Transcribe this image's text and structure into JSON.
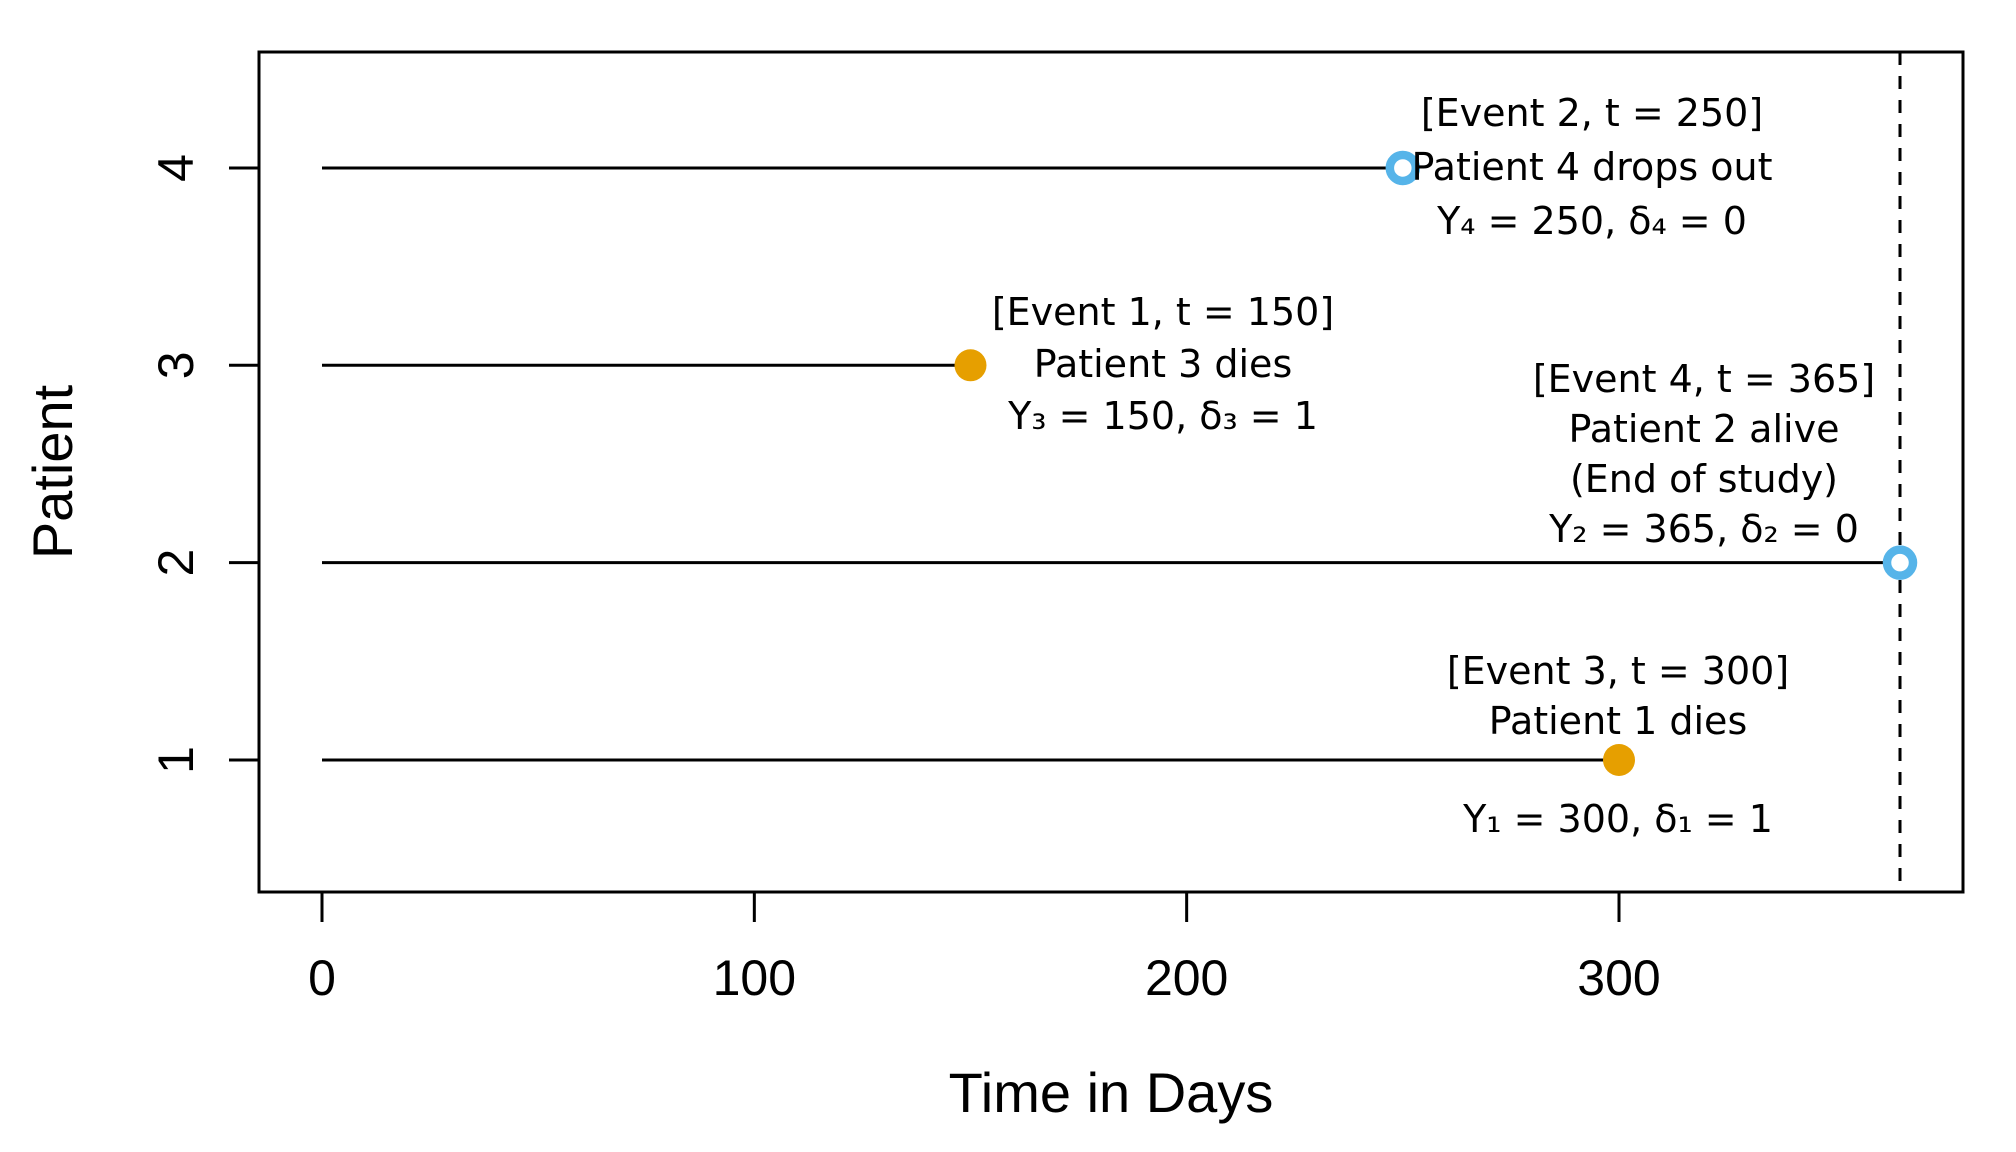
{
  "chart_data": {
    "type": "line",
    "title": "",
    "xlabel": "Time in Days",
    "ylabel": "Patient",
    "xlim": [
      -15,
      380
    ],
    "ylim": [
      0.3,
      4.6
    ],
    "x_ticks": [
      "0",
      "100",
      "200",
      "300"
    ],
    "x_tick_values": [
      0,
      100,
      200,
      300
    ],
    "y_ticks": [
      "1",
      "2",
      "3",
      "4"
    ],
    "y_tick_values": [
      1,
      2,
      3,
      4
    ],
    "grid": "off",
    "legend": "none",
    "end_of_study_time": 365,
    "colors": {
      "death_marker": "#E69F00",
      "censor_marker": "#56B4E9",
      "line": "#000000",
      "dashed_line": "#000000",
      "background": "#FFFFFF"
    },
    "series": [
      {
        "patient": 1,
        "start": 0,
        "time": 300,
        "delta": 1,
        "event_number": 3,
        "marker": "filled-circle",
        "annotation_lines": [
          "[Event 3, t = 300]",
          "Patient 1 dies",
          "Y₁ = 300, δ₁ = 1"
        ]
      },
      {
        "patient": 2,
        "start": 0,
        "time": 365,
        "delta": 0,
        "event_number": 4,
        "marker": "open-circle",
        "annotation_lines": [
          "[Event 4, t = 365]",
          "Patient 2 alive",
          "(End of study)",
          "Y₂ = 365, δ₂ = 0"
        ]
      },
      {
        "patient": 3,
        "start": 0,
        "time": 150,
        "delta": 1,
        "event_number": 1,
        "marker": "filled-circle",
        "annotation_lines": [
          "[Event 1, t = 150]",
          "Patient 3 dies",
          "Y₃ = 150, δ₃ = 1"
        ]
      },
      {
        "patient": 4,
        "start": 0,
        "time": 250,
        "delta": 0,
        "event_number": 2,
        "marker": "open-circle",
        "annotation_lines": [
          "[Event 2, t = 250]",
          "Patient 4 drops out",
          "Y₄ = 250, δ₄ = 0"
        ]
      }
    ]
  }
}
